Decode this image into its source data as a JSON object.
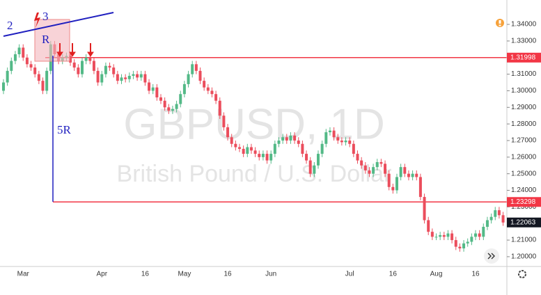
{
  "chart_data": {
    "type": "candlestick",
    "watermark": "GBPUSD, 1D",
    "watermark_subtitle": "British Pound / U.S. Dollar",
    "annotations": {
      "wave_2": "2",
      "wave_3": "3",
      "risk": "R",
      "reward": "5R"
    },
    "up_color": "#53b987",
    "down_color": "#eb4d5c",
    "ylim": [
      1.1941,
      1.3547
    ],
    "yticks": [
      {
        "value": 1.34,
        "label": "1.34000"
      },
      {
        "value": 1.33,
        "label": "1.33000"
      },
      {
        "value": 1.32,
        "label": "1.32000"
      },
      {
        "value": 1.31,
        "label": "1.31000"
      },
      {
        "value": 1.3,
        "label": "1.30000"
      },
      {
        "value": 1.29,
        "label": "1.29000"
      },
      {
        "value": 1.28,
        "label": "1.28000"
      },
      {
        "value": 1.27,
        "label": "1.27000"
      },
      {
        "value": 1.26,
        "label": "1.26000"
      },
      {
        "value": 1.25,
        "label": "1.25000"
      },
      {
        "value": 1.24,
        "label": "1.24000"
      },
      {
        "value": 1.23,
        "label": "1.23000"
      },
      {
        "value": 1.22,
        "label": "1.22000"
      },
      {
        "value": 1.21,
        "label": "1.21000"
      },
      {
        "value": 1.2,
        "label": "1.20000"
      }
    ],
    "levels": [
      {
        "price": 1.31998,
        "color": "#f23645"
      },
      {
        "price": 1.23298,
        "color": "#f23645"
      }
    ],
    "last_price": 1.22063,
    "categories": [
      null,
      null,
      null,
      null,
      null,
      "Mar",
      null,
      null,
      null,
      null,
      null,
      null,
      null,
      null,
      null,
      null,
      null,
      null,
      null,
      null,
      null,
      null,
      null,
      null,
      null,
      "Apr",
      null,
      null,
      null,
      null,
      null,
      null,
      null,
      null,
      null,
      null,
      "16",
      null,
      null,
      null,
      null,
      null,
      null,
      null,
      null,
      null,
      "May",
      null,
      null,
      null,
      null,
      null,
      null,
      null,
      null,
      null,
      null,
      "16",
      null,
      null,
      null,
      null,
      null,
      null,
      null,
      null,
      null,
      null,
      "Jun",
      null,
      null,
      null,
      null,
      null,
      null,
      null,
      null,
      null,
      null,
      null,
      null,
      null,
      null,
      null,
      null,
      null,
      null,
      null,
      "Jul",
      null,
      null,
      null,
      null,
      null,
      null,
      null,
      null,
      null,
      null,
      "16",
      null,
      null,
      null,
      null,
      null,
      null,
      null,
      null,
      null,
      null,
      "Aug",
      null,
      null,
      null,
      null,
      null,
      null,
      null,
      null,
      null,
      "16",
      null,
      null,
      null,
      null,
      null,
      null,
      null
    ],
    "open": [
      1.3,
      1.305,
      1.312,
      1.318,
      1.322,
      1.326,
      1.32,
      1.316,
      1.314,
      1.31,
      1.306,
      1.3,
      1.312,
      1.328,
      1.322,
      1.318,
      1.32,
      1.321,
      1.317,
      1.314,
      1.31,
      1.318,
      1.32,
      1.318,
      1.312,
      1.305,
      1.31,
      1.315,
      1.314,
      1.31,
      1.306,
      1.308,
      1.307,
      1.309,
      1.31,
      1.308,
      1.31,
      1.305,
      1.3,
      1.302,
      1.296,
      1.294,
      1.29,
      1.288,
      1.289,
      1.292,
      1.298,
      1.304,
      1.31,
      1.316,
      1.312,
      1.306,
      1.302,
      1.3,
      1.298,
      1.294,
      1.285,
      1.278,
      1.272,
      1.268,
      1.266,
      1.265,
      1.262,
      1.266,
      1.264,
      1.262,
      1.26,
      1.262,
      1.258,
      1.262,
      1.268,
      1.27,
      1.272,
      1.27,
      1.273,
      1.27,
      1.268,
      1.262,
      1.258,
      1.25,
      1.255,
      1.262,
      1.268,
      1.275,
      1.276,
      1.272,
      1.27,
      1.269,
      1.27,
      1.268,
      1.262,
      1.258,
      1.255,
      1.252,
      1.25,
      1.254,
      1.257,
      1.256,
      1.25,
      1.242,
      1.24,
      1.248,
      1.254,
      1.25,
      1.248,
      1.25,
      1.248,
      1.236,
      1.222,
      1.215,
      1.212,
      1.212,
      1.213,
      1.212,
      1.214,
      1.21,
      1.206,
      1.205,
      1.208,
      1.209,
      1.212,
      1.214,
      1.212,
      1.218,
      1.222,
      1.224,
      1.228,
      1.225
    ],
    "high": [
      1.307,
      1.314,
      1.32,
      1.324,
      1.328,
      1.328,
      1.322,
      1.318,
      1.316,
      1.312,
      1.308,
      1.314,
      1.33,
      1.33,
      1.324,
      1.322,
      1.323,
      1.323,
      1.319,
      1.316,
      1.32,
      1.322,
      1.322,
      1.32,
      1.314,
      1.312,
      1.317,
      1.317,
      1.316,
      1.312,
      1.31,
      1.31,
      1.311,
      1.312,
      1.312,
      1.312,
      1.312,
      1.307,
      1.304,
      1.304,
      1.298,
      1.296,
      1.292,
      1.291,
      1.294,
      1.3,
      1.306,
      1.312,
      1.318,
      1.318,
      1.314,
      1.308,
      1.304,
      1.302,
      1.3,
      1.296,
      1.287,
      1.28,
      1.274,
      1.27,
      1.268,
      1.267,
      1.268,
      1.268,
      1.266,
      1.264,
      1.264,
      1.264,
      1.264,
      1.27,
      1.272,
      1.274,
      1.274,
      1.275,
      1.275,
      1.272,
      1.27,
      1.264,
      1.26,
      1.257,
      1.264,
      1.27,
      1.277,
      1.278,
      1.278,
      1.274,
      1.272,
      1.272,
      1.272,
      1.27,
      1.264,
      1.26,
      1.257,
      1.254,
      1.256,
      1.259,
      1.259,
      1.258,
      1.252,
      1.244,
      1.25,
      1.256,
      1.256,
      1.252,
      1.252,
      1.252,
      1.25,
      1.238,
      1.224,
      1.217,
      1.214,
      1.215,
      1.215,
      1.216,
      1.216,
      1.212,
      1.208,
      1.21,
      1.211,
      1.214,
      1.216,
      1.216,
      1.22,
      1.224,
      1.226,
      1.23,
      1.23,
      1.227
    ],
    "low": [
      1.298,
      1.303,
      1.31,
      1.316,
      1.32,
      1.318,
      1.314,
      1.312,
      1.308,
      1.304,
      1.298,
      1.298,
      1.31,
      1.32,
      1.316,
      1.316,
      1.318,
      1.315,
      1.312,
      1.308,
      1.308,
      1.316,
      1.316,
      1.31,
      1.303,
      1.303,
      1.308,
      1.312,
      1.308,
      1.304,
      1.304,
      1.305,
      1.305,
      1.307,
      1.306,
      1.306,
      1.303,
      1.298,
      1.298,
      1.294,
      1.292,
      1.288,
      1.286,
      1.286,
      1.287,
      1.29,
      1.296,
      1.302,
      1.308,
      1.31,
      1.304,
      1.3,
      1.298,
      1.296,
      1.292,
      1.283,
      1.276,
      1.27,
      1.266,
      1.264,
      1.263,
      1.26,
      1.26,
      1.262,
      1.26,
      1.258,
      1.258,
      1.256,
      1.256,
      1.26,
      1.266,
      1.268,
      1.268,
      1.268,
      1.268,
      1.266,
      1.26,
      1.256,
      1.248,
      1.248,
      1.253,
      1.26,
      1.266,
      1.273,
      1.27,
      1.268,
      1.267,
      1.267,
      1.266,
      1.26,
      1.256,
      1.253,
      1.25,
      1.248,
      1.248,
      1.252,
      1.254,
      1.248,
      1.24,
      1.238,
      1.238,
      1.246,
      1.248,
      1.246,
      1.246,
      1.246,
      1.234,
      1.22,
      1.213,
      1.21,
      1.21,
      1.21,
      1.21,
      1.21,
      1.208,
      1.204,
      1.203,
      1.203,
      1.206,
      1.207,
      1.21,
      1.21,
      1.21,
      1.216,
      1.22,
      1.222,
      1.223,
      1.2186
    ],
    "close": [
      1.305,
      1.312,
      1.318,
      1.322,
      1.326,
      1.32,
      1.316,
      1.314,
      1.31,
      1.306,
      1.3,
      1.312,
      1.328,
      1.322,
      1.318,
      1.32,
      1.321,
      1.317,
      1.314,
      1.31,
      1.318,
      1.32,
      1.318,
      1.312,
      1.305,
      1.31,
      1.315,
      1.314,
      1.31,
      1.306,
      1.308,
      1.307,
      1.309,
      1.31,
      1.308,
      1.31,
      1.305,
      1.3,
      1.302,
      1.296,
      1.294,
      1.29,
      1.288,
      1.289,
      1.292,
      1.298,
      1.304,
      1.31,
      1.316,
      1.312,
      1.306,
      1.302,
      1.3,
      1.298,
      1.294,
      1.285,
      1.278,
      1.272,
      1.268,
      1.266,
      1.265,
      1.262,
      1.266,
      1.264,
      1.262,
      1.26,
      1.262,
      1.258,
      1.262,
      1.268,
      1.27,
      1.272,
      1.27,
      1.273,
      1.27,
      1.268,
      1.262,
      1.258,
      1.25,
      1.255,
      1.262,
      1.268,
      1.275,
      1.276,
      1.272,
      1.27,
      1.269,
      1.27,
      1.268,
      1.262,
      1.258,
      1.255,
      1.252,
      1.25,
      1.254,
      1.257,
      1.256,
      1.25,
      1.242,
      1.24,
      1.248,
      1.254,
      1.25,
      1.248,
      1.25,
      1.248,
      1.236,
      1.222,
      1.215,
      1.212,
      1.212,
      1.213,
      1.212,
      1.214,
      1.21,
      1.206,
      1.205,
      1.208,
      1.209,
      1.212,
      1.214,
      1.212,
      1.218,
      1.222,
      1.224,
      1.228,
      1.225,
      1.2206
    ]
  }
}
